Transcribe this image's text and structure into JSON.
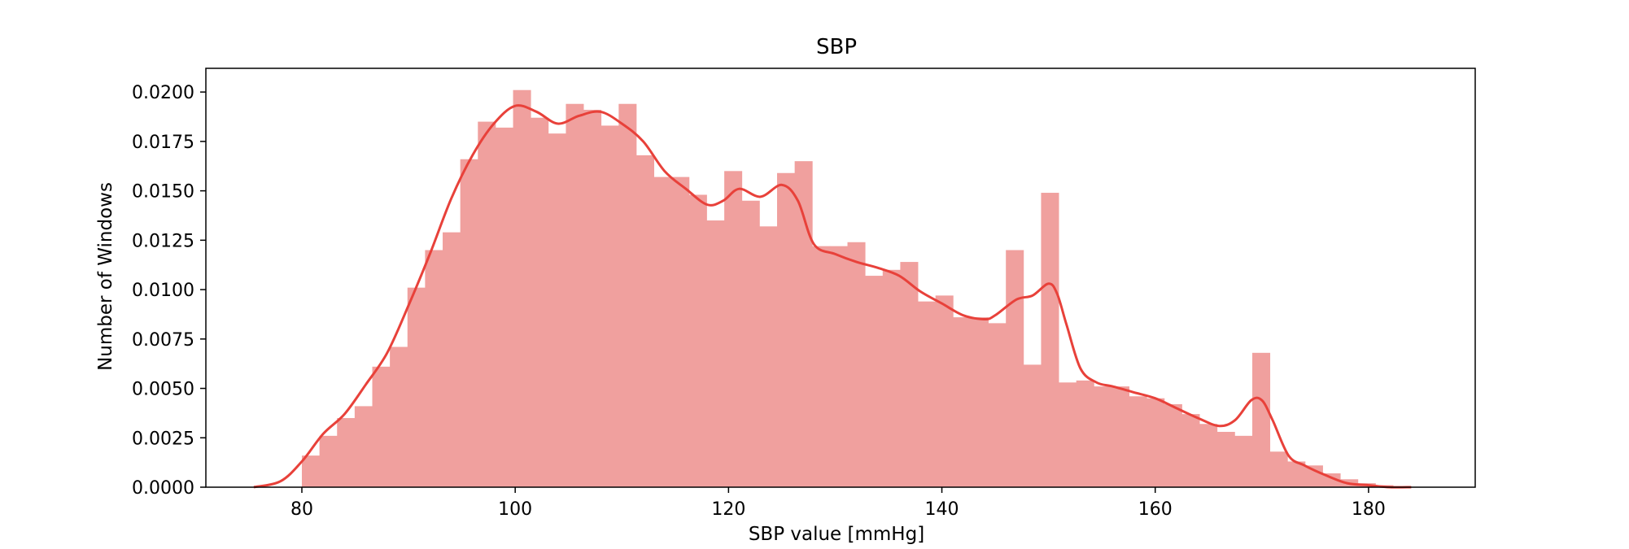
{
  "chart_data": {
    "type": "histogram",
    "title": "SBP",
    "xlabel": "SBP value [mmHg]",
    "ylabel": "Number of Windows",
    "xlim": [
      71,
      190
    ],
    "ylim": [
      0,
      0.0212
    ],
    "x_ticks": [
      80,
      100,
      120,
      140,
      160,
      180
    ],
    "x_tick_labels": [
      "80",
      "100",
      "120",
      "140",
      "160",
      "180"
    ],
    "y_ticks": [
      0,
      0.0025,
      0.005,
      0.0075,
      0.01,
      0.0125,
      0.015,
      0.0175,
      0.02
    ],
    "y_tick_labels": [
      "0.0000",
      "0.0025",
      "0.0050",
      "0.0075",
      "0.0100",
      "0.0125",
      "0.0150",
      "0.0175",
      "0.0200"
    ],
    "grid": false,
    "bar_color": "#f0a09e",
    "line_color": "#e8413a",
    "bins": {
      "start": 80,
      "width": 1.65,
      "values": [
        0.0016,
        0.0026,
        0.0035,
        0.0041,
        0.0061,
        0.0071,
        0.0101,
        0.012,
        0.0129,
        0.0166,
        0.0185,
        0.0182,
        0.0201,
        0.0187,
        0.0179,
        0.0194,
        0.0191,
        0.0183,
        0.0194,
        0.0168,
        0.0157,
        0.0157,
        0.0148,
        0.0135,
        0.016,
        0.0145,
        0.0132,
        0.0159,
        0.0165,
        0.0122,
        0.0122,
        0.0124,
        0.0107,
        0.011,
        0.0114,
        0.0094,
        0.0097,
        0.0086,
        0.0086,
        0.0083,
        0.012,
        0.0062,
        0.0149,
        0.0053,
        0.0054,
        0.0051,
        0.0051,
        0.0046,
        0.0045,
        0.0042,
        0.0037,
        0.0032,
        0.0028,
        0.0026,
        0.0068,
        0.0018,
        0.0013,
        0.0011,
        0.0007,
        0.0004,
        0.0002,
        0.0001
      ]
    },
    "kde": {
      "x": [
        75.5,
        78,
        80,
        82,
        84,
        86,
        88,
        90,
        92,
        94,
        96,
        98,
        100,
        102,
        104,
        106,
        108,
        110,
        112,
        114,
        116,
        118,
        119.5,
        121,
        123,
        125,
        126.5,
        128,
        130,
        132,
        134,
        136,
        138,
        140,
        142,
        144,
        145,
        147,
        148.5,
        150,
        150.8,
        151.7,
        153,
        154.5,
        156,
        158,
        160,
        162,
        164,
        166,
        167.5,
        169,
        170,
        171,
        172.5,
        174,
        176,
        178,
        180,
        182,
        184
      ],
      "y": [
        0.0,
        0.0003,
        0.0013,
        0.0027,
        0.0037,
        0.0052,
        0.0068,
        0.0092,
        0.0118,
        0.0146,
        0.0168,
        0.0184,
        0.0193,
        0.019,
        0.0184,
        0.0188,
        0.019,
        0.0184,
        0.0175,
        0.016,
        0.0151,
        0.0143,
        0.0145,
        0.0151,
        0.0147,
        0.0153,
        0.0145,
        0.0123,
        0.0118,
        0.0114,
        0.0111,
        0.0107,
        0.0099,
        0.0093,
        0.0087,
        0.0085,
        0.0087,
        0.0095,
        0.0097,
        0.0103,
        0.0098,
        0.0082,
        0.006,
        0.0053,
        0.0051,
        0.0048,
        0.0045,
        0.004,
        0.0035,
        0.0031,
        0.0034,
        0.0044,
        0.0044,
        0.0034,
        0.0016,
        0.0011,
        0.0006,
        0.0002,
        0.0001,
        0.0,
        0.0
      ]
    }
  }
}
